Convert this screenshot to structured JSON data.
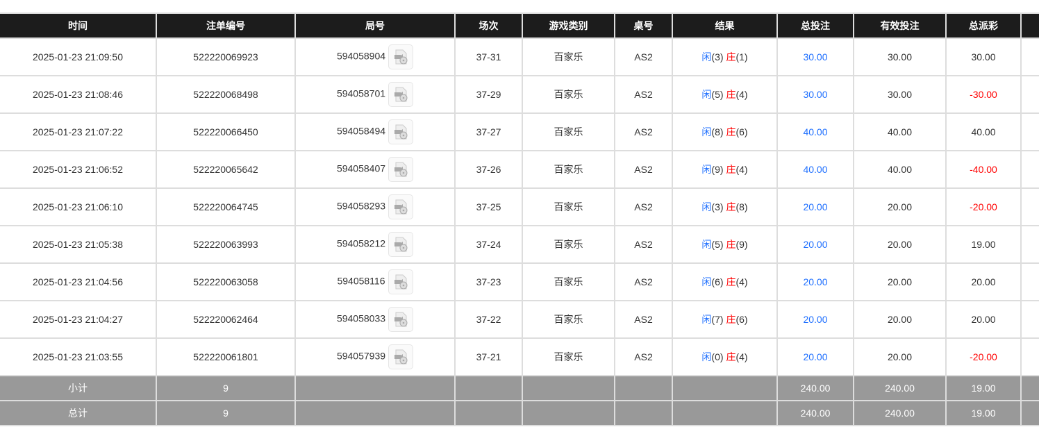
{
  "headers": [
    "时间",
    "注单编号",
    "局号",
    "场次",
    "游戏类别",
    "桌号",
    "结果",
    "总投注",
    "有效投注",
    "总派彩",
    ""
  ],
  "colors": {
    "player": "#1e6fff",
    "banker": "#ff0000",
    "loss": "#ff0000",
    "header_bg": "#1c1c1c",
    "footer_bg": "#999999"
  },
  "rows": [
    {
      "time": "2025-01-23 21:09:50",
      "bet_id": "522220069923",
      "round": "594058904",
      "shoe": "37-31",
      "game": "百家乐",
      "table": "AS2",
      "player_label": "闲",
      "player": "(3)",
      "banker_label": "庄",
      "banker": "(1)",
      "total_bet": "30.00",
      "valid_bet": "30.00",
      "payout": "30.00",
      "payout_negative": false
    },
    {
      "time": "2025-01-23 21:08:46",
      "bet_id": "522220068498",
      "round": "594058701",
      "shoe": "37-29",
      "game": "百家乐",
      "table": "AS2",
      "player_label": "闲",
      "player": "(5)",
      "banker_label": "庄",
      "banker": "(4)",
      "total_bet": "30.00",
      "valid_bet": "30.00",
      "payout": "-30.00",
      "payout_negative": true
    },
    {
      "time": "2025-01-23 21:07:22",
      "bet_id": "522220066450",
      "round": "594058494",
      "shoe": "37-27",
      "game": "百家乐",
      "table": "AS2",
      "player_label": "闲",
      "player": "(8)",
      "banker_label": "庄",
      "banker": "(6)",
      "total_bet": "40.00",
      "valid_bet": "40.00",
      "payout": "40.00",
      "payout_negative": false
    },
    {
      "time": "2025-01-23 21:06:52",
      "bet_id": "522220065642",
      "round": "594058407",
      "shoe": "37-26",
      "game": "百家乐",
      "table": "AS2",
      "player_label": "闲",
      "player": "(9)",
      "banker_label": "庄",
      "banker": "(4)",
      "total_bet": "40.00",
      "valid_bet": "40.00",
      "payout": "-40.00",
      "payout_negative": true
    },
    {
      "time": "2025-01-23 21:06:10",
      "bet_id": "522220064745",
      "round": "594058293",
      "shoe": "37-25",
      "game": "百家乐",
      "table": "AS2",
      "player_label": "闲",
      "player": "(3)",
      "banker_label": "庄",
      "banker": "(8)",
      "total_bet": "20.00",
      "valid_bet": "20.00",
      "payout": "-20.00",
      "payout_negative": true
    },
    {
      "time": "2025-01-23 21:05:38",
      "bet_id": "522220063993",
      "round": "594058212",
      "shoe": "37-24",
      "game": "百家乐",
      "table": "AS2",
      "player_label": "闲",
      "player": "(5)",
      "banker_label": "庄",
      "banker": "(9)",
      "total_bet": "20.00",
      "valid_bet": "20.00",
      "payout": "19.00",
      "payout_negative": false
    },
    {
      "time": "2025-01-23 21:04:56",
      "bet_id": "522220063058",
      "round": "594058116",
      "shoe": "37-23",
      "game": "百家乐",
      "table": "AS2",
      "player_label": "闲",
      "player": "(6)",
      "banker_label": "庄",
      "banker": "(4)",
      "total_bet": "20.00",
      "valid_bet": "20.00",
      "payout": "20.00",
      "payout_negative": false
    },
    {
      "time": "2025-01-23 21:04:27",
      "bet_id": "522220062464",
      "round": "594058033",
      "shoe": "37-22",
      "game": "百家乐",
      "table": "AS2",
      "player_label": "闲",
      "player": "(7)",
      "banker_label": "庄",
      "banker": "(6)",
      "total_bet": "20.00",
      "valid_bet": "20.00",
      "payout": "20.00",
      "payout_negative": false
    },
    {
      "time": "2025-01-23 21:03:55",
      "bet_id": "522220061801",
      "round": "594057939",
      "shoe": "37-21",
      "game": "百家乐",
      "table": "AS2",
      "player_label": "闲",
      "player": "(0)",
      "banker_label": "庄",
      "banker": "(4)",
      "total_bet": "20.00",
      "valid_bet": "20.00",
      "payout": "-20.00",
      "payout_negative": true
    }
  ],
  "subtotal": {
    "label": "小计",
    "count": "9",
    "total_bet": "240.00",
    "valid_bet": "240.00",
    "payout": "19.00"
  },
  "total": {
    "label": "总计",
    "count": "9",
    "total_bet": "240.00",
    "valid_bet": "240.00",
    "payout": "19.00"
  },
  "icons": {
    "replay": "video-replay-icon"
  }
}
